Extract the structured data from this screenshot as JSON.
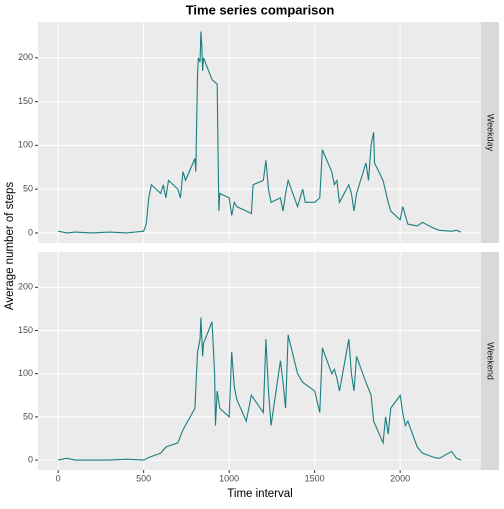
{
  "chart_data": {
    "type": "line",
    "title": "Time series comparison",
    "xlabel": "Time interval",
    "ylabel": "Average number of steps",
    "xlim": [
      -117.75,
      2472.75
    ],
    "xticks": [
      0,
      500,
      1000,
      1500,
      2000
    ],
    "ylim": [
      -11.5,
      240.9
    ],
    "yticks": [
      0,
      50,
      100,
      150,
      200
    ],
    "grid": true,
    "color": "#1b7f80",
    "series": [
      {
        "name": "Weekday",
        "x": [
          0,
          50,
          100,
          200,
          300,
          400,
          450,
          500,
          515,
          530,
          545,
          600,
          615,
          630,
          645,
          700,
          715,
          730,
          745,
          800,
          805,
          815,
          820,
          830,
          835,
          840,
          845,
          850,
          900,
          930,
          935,
          940,
          945,
          1000,
          1015,
          1030,
          1045,
          1100,
          1130,
          1140,
          1200,
          1215,
          1230,
          1245,
          1300,
          1315,
          1330,
          1345,
          1400,
          1430,
          1445,
          1500,
          1530,
          1545,
          1600,
          1615,
          1630,
          1645,
          1700,
          1715,
          1730,
          1745,
          1800,
          1815,
          1830,
          1845,
          1850,
          1900,
          1930,
          1945,
          2000,
          2015,
          2030,
          2045,
          2100,
          2130,
          2200,
          2230,
          2300,
          2330,
          2355
        ],
        "values": [
          2,
          0,
          1,
          0,
          1,
          0,
          1,
          2,
          10,
          40,
          55,
          45,
          55,
          40,
          60,
          50,
          40,
          70,
          60,
          85,
          70,
          180,
          200,
          195,
          230,
          215,
          185,
          200,
          175,
          170,
          95,
          25,
          45,
          40,
          20,
          35,
          30,
          25,
          22,
          55,
          60,
          83,
          50,
          35,
          40,
          25,
          45,
          60,
          30,
          50,
          35,
          35,
          40,
          95,
          70,
          55,
          60,
          35,
          55,
          45,
          25,
          45,
          80,
          60,
          100,
          115,
          80,
          60,
          35,
          25,
          15,
          30,
          20,
          10,
          8,
          12,
          5,
          3,
          2,
          3,
          1
        ]
      },
      {
        "name": "Weekend",
        "x": [
          0,
          50,
          100,
          300,
          400,
          500,
          530,
          600,
          630,
          700,
          730,
          800,
          815,
          830,
          835,
          845,
          850,
          900,
          915,
          920,
          930,
          945,
          1000,
          1015,
          1030,
          1045,
          1100,
          1130,
          1200,
          1215,
          1230,
          1245,
          1300,
          1315,
          1330,
          1345,
          1400,
          1430,
          1500,
          1530,
          1545,
          1600,
          1615,
          1630,
          1645,
          1700,
          1715,
          1730,
          1745,
          1800,
          1830,
          1845,
          1900,
          1915,
          1930,
          1945,
          2000,
          2015,
          2030,
          2045,
          2100,
          2130,
          2200,
          2230,
          2300,
          2330,
          2355
        ],
        "values": [
          0,
          2,
          0,
          0,
          1,
          0,
          3,
          8,
          15,
          20,
          35,
          60,
          125,
          140,
          165,
          120,
          135,
          160,
          100,
          40,
          80,
          60,
          50,
          125,
          85,
          70,
          45,
          75,
          55,
          140,
          80,
          40,
          115,
          90,
          60,
          145,
          100,
          90,
          80,
          55,
          130,
          100,
          105,
          95,
          80,
          140,
          100,
          80,
          120,
          90,
          75,
          45,
          20,
          50,
          30,
          60,
          75,
          55,
          40,
          45,
          15,
          8,
          3,
          2,
          10,
          2,
          0
        ]
      }
    ]
  }
}
